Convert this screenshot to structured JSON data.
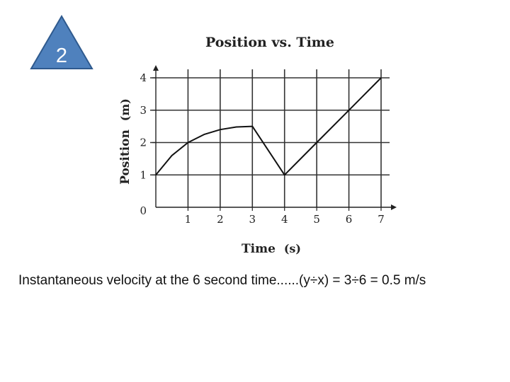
{
  "slide": {
    "badge_number": "2",
    "badge_color": "#4f81bd",
    "badge_border_color": "#2f5a8e",
    "caption": "Instantaneous velocity at the 6 second time......(y÷x) = 3÷6 = 0.5 m/s"
  },
  "chart_data": {
    "type": "line",
    "title": "Position vs. Time",
    "xlabel": "Time",
    "xlabel_unit": "(s)",
    "ylabel": "Position",
    "ylabel_unit": "(m)",
    "xlim": [
      0,
      7
    ],
    "ylim": [
      0,
      4
    ],
    "x_ticks": [
      "1",
      "2",
      "3",
      "4",
      "5",
      "6",
      "7"
    ],
    "y_ticks": [
      "1",
      "2",
      "3",
      "4"
    ],
    "origin_label": "0",
    "grid": true,
    "series": [
      {
        "x": [
          0,
          0.5,
          1,
          1.5,
          2,
          2.5,
          3,
          4,
          5,
          6,
          7
        ],
        "y": [
          1.0,
          1.6,
          2.0,
          2.25,
          2.4,
          2.48,
          2.5,
          1.0,
          2.0,
          3.0,
          4.0
        ]
      }
    ]
  }
}
